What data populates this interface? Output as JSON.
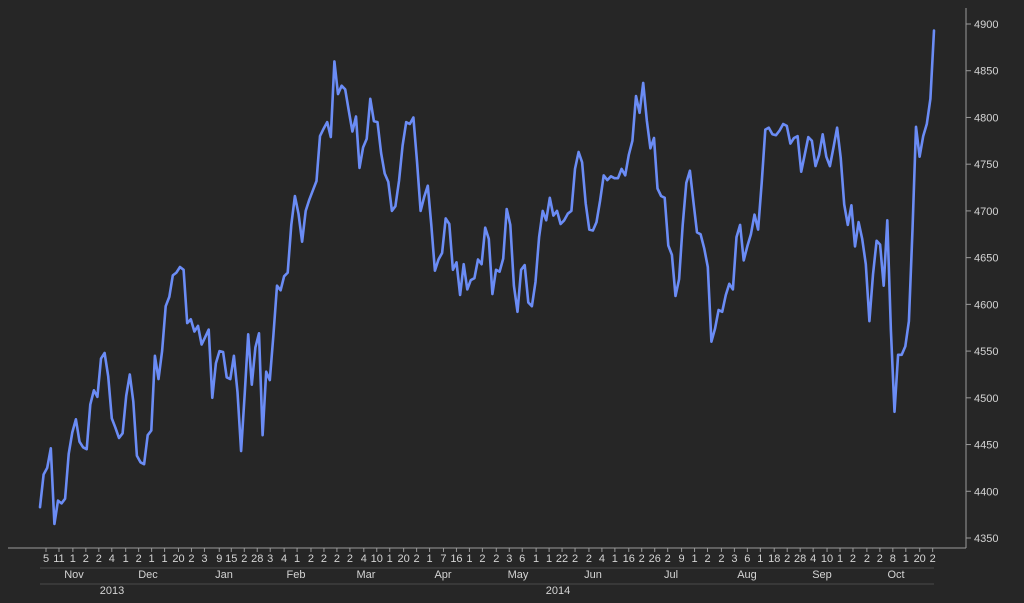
{
  "chart_data": {
    "type": "line",
    "title": "",
    "xlabel": "",
    "ylabel": "",
    "ylim": [
      4350,
      4900
    ],
    "y_ticks": [
      4350,
      4400,
      4450,
      4500,
      4550,
      4600,
      4650,
      4700,
      4750,
      4800,
      4850,
      4900
    ],
    "y_axis_position": "right",
    "grid": false,
    "legend": "none",
    "colors": {
      "background": "#262626",
      "line": "#6b8cf5",
      "axis": "#9a9a9a",
      "text": "#d4d4d4"
    },
    "x_day_ticks": [
      "5",
      "11",
      "1",
      "2",
      "2",
      "4",
      "1",
      "2",
      "1",
      "1",
      "20",
      "2",
      "3",
      "9",
      "15",
      "2",
      "28",
      "3",
      "4",
      "1",
      "2",
      "2",
      "2",
      "2",
      "4",
      "10",
      "1",
      "20",
      "2",
      "1",
      "7",
      "16",
      "1",
      "2",
      "2",
      "3",
      "6",
      "1",
      "1",
      "22",
      "2",
      "2",
      "4",
      "1",
      "16",
      "2",
      "26",
      "2",
      "9",
      "1",
      "2",
      "2",
      "3",
      "6",
      "1",
      "18",
      "2",
      "28",
      "4",
      "10",
      "1",
      "2",
      "2",
      "2",
      "8",
      "1",
      "20",
      "2"
    ],
    "x_month_ticks": [
      "Nov",
      "Dec",
      "Jan",
      "Feb",
      "Mar",
      "Apr",
      "May",
      "Jun",
      "Jul",
      "Aug",
      "Sep",
      "Oct"
    ],
    "x_year_ticks": [
      "2013",
      "2014"
    ],
    "series": [
      {
        "values": [
          4383,
          4418,
          4425,
          4446,
          4365,
          4390,
          4387,
          4392,
          4440,
          4463,
          4477,
          4453,
          4447,
          4445,
          4493,
          4508,
          4501,
          4542,
          4548,
          4523,
          4478,
          4468,
          4457,
          4462,
          4502,
          4525,
          4496,
          4438,
          4431,
          4429,
          4460,
          4465,
          4545,
          4520,
          4550,
          4598,
          4608,
          4631,
          4634,
          4640,
          4637,
          4580,
          4584,
          4571,
          4577,
          4557,
          4565,
          4573,
          4500,
          4537,
          4550,
          4549,
          4522,
          4520,
          4545,
          4506,
          4443,
          4504,
          4568,
          4514,
          4554,
          4569,
          4460,
          4528,
          4519,
          4567,
          4620,
          4615,
          4630,
          4634,
          4685,
          4716,
          4697,
          4667,
          4700,
          4712,
          4722,
          4732,
          4780,
          4788,
          4795,
          4779,
          4860,
          4825,
          4834,
          4830,
          4807,
          4785,
          4801,
          4746,
          4768,
          4777,
          4820,
          4796,
          4795,
          4762,
          4740,
          4731,
          4700,
          4705,
          4732,
          4770,
          4795,
          4793,
          4800,
          4753,
          4700,
          4715,
          4727,
          4685,
          4636,
          4648,
          4655,
          4692,
          4686,
          4637,
          4645,
          4610,
          4643,
          4616,
          4626,
          4628,
          4648,
          4643,
          4682,
          4670,
          4611,
          4637,
          4635,
          4649,
          4702,
          4685,
          4620,
          4592,
          4637,
          4642,
          4602,
          4598,
          4624,
          4672,
          4700,
          4690,
          4714,
          4695,
          4700,
          4686,
          4690,
          4697,
          4700,
          4745,
          4763,
          4752,
          4708,
          4680,
          4679,
          4688,
          4711,
          4738,
          4733,
          4737,
          4735,
          4735,
          4745,
          4738,
          4760,
          4775,
          4823,
          4805,
          4837,
          4797,
          4767,
          4778,
          4724,
          4716,
          4714,
          4663,
          4653,
          4609,
          4627,
          4685,
          4730,
          4743,
          4710,
          4677,
          4675,
          4660,
          4640,
          4560,
          4574,
          4594,
          4592,
          4610,
          4622,
          4616,
          4672,
          4685,
          4647,
          4662,
          4675,
          4696,
          4680,
          4730,
          4787,
          4789,
          4782,
          4781,
          4786,
          4793,
          4791,
          4772,
          4778,
          4780,
          4742,
          4760,
          4779,
          4775,
          4748,
          4760,
          4782,
          4758,
          4748,
          4768,
          4789,
          4757,
          4707,
          4685,
          4706,
          4662,
          4688,
          4670,
          4643,
          4582,
          4632,
          4668,
          4664,
          4620,
          4690,
          4572,
          4485,
          4546,
          4546,
          4555,
          4582,
          4680,
          4790,
          4758,
          4780,
          4793,
          4820,
          4893
        ]
      }
    ]
  }
}
